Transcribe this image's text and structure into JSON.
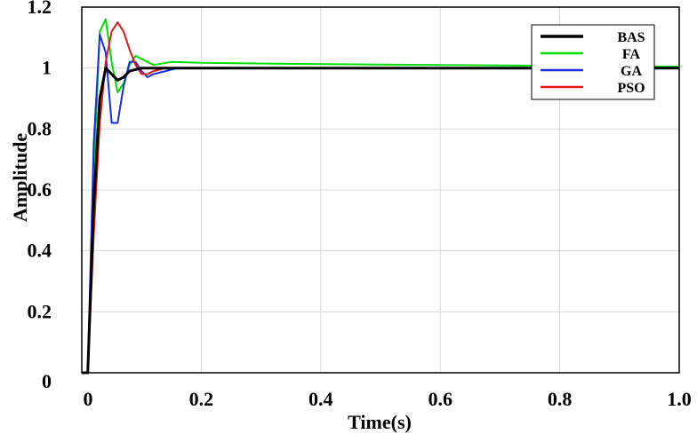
{
  "chart_data": {
    "type": "line",
    "xlabel": "Time(s)",
    "ylabel": "Amplitude",
    "xlim": [
      0,
      1.0
    ],
    "ylim": [
      0,
      1.2
    ],
    "xticks": [
      0,
      0.2,
      0.4,
      0.6,
      0.8,
      1.0
    ],
    "xtick_labels": [
      "0",
      "0.2",
      "0.4",
      "0.6",
      "0.8",
      "1.0"
    ],
    "yticks": [
      0,
      0.2,
      0.4,
      0.6,
      0.8,
      1,
      1.2
    ],
    "ytick_labels": [
      "0",
      "0.2",
      "0.4",
      "0.6",
      "0.8",
      "1",
      "1.2"
    ],
    "grid": true,
    "legend_position": "top-right",
    "series": [
      {
        "name": "BAS",
        "color": "#000000",
        "width": 3,
        "x": [
          0,
          0.005,
          0.01,
          0.02,
          0.03,
          0.04,
          0.05,
          0.06,
          0.07,
          0.08,
          0.1,
          0.12,
          0.15,
          0.2,
          0.4,
          0.6,
          0.8,
          1.0
        ],
        "y": [
          0,
          0,
          0,
          0.55,
          0.9,
          1.0,
          0.98,
          0.96,
          0.97,
          0.99,
          1.0,
          1.0,
          1.0,
          1.0,
          1.0,
          1.0,
          1.0,
          1.0
        ]
      },
      {
        "name": "FA",
        "color": "#00dd00",
        "width": 2,
        "x": [
          0,
          0.005,
          0.01,
          0.02,
          0.03,
          0.04,
          0.05,
          0.06,
          0.07,
          0.08,
          0.09,
          0.1,
          0.12,
          0.15,
          0.2,
          0.4,
          0.6,
          0.8,
          1.0
        ],
        "y": [
          0,
          0,
          0,
          0.65,
          1.12,
          1.16,
          1.02,
          0.92,
          0.95,
          1.01,
          1.04,
          1.03,
          1.01,
          1.02,
          1.017,
          1.013,
          1.01,
          1.007,
          1.005
        ]
      },
      {
        "name": "GA",
        "color": "#1a2ee0",
        "width": 2,
        "x": [
          0,
          0.005,
          0.01,
          0.02,
          0.03,
          0.04,
          0.05,
          0.06,
          0.07,
          0.08,
          0.09,
          0.1,
          0.11,
          0.12,
          0.14,
          0.16,
          0.2,
          0.4,
          0.6,
          0.8,
          1.0
        ],
        "y": [
          0,
          0,
          0,
          0.75,
          1.11,
          1.05,
          0.82,
          0.82,
          0.94,
          1.02,
          1.02,
          0.99,
          0.97,
          0.98,
          0.99,
          1.0,
          1.0,
          1.0,
          1.0,
          1.0,
          1.0
        ]
      },
      {
        "name": "PSO",
        "color": "#e01818",
        "width": 2,
        "x": [
          0,
          0.005,
          0.01,
          0.02,
          0.03,
          0.04,
          0.05,
          0.06,
          0.07,
          0.08,
          0.09,
          0.1,
          0.11,
          0.12,
          0.14,
          0.16,
          0.2,
          0.4,
          0.6,
          0.8,
          1.0
        ],
        "y": [
          0,
          0,
          0,
          0.45,
          0.82,
          1.02,
          1.12,
          1.15,
          1.12,
          1.06,
          1.01,
          0.98,
          0.98,
          0.99,
          1.0,
          1.0,
          1.0,
          1.0,
          1.0,
          1.0,
          1.0
        ]
      }
    ]
  }
}
